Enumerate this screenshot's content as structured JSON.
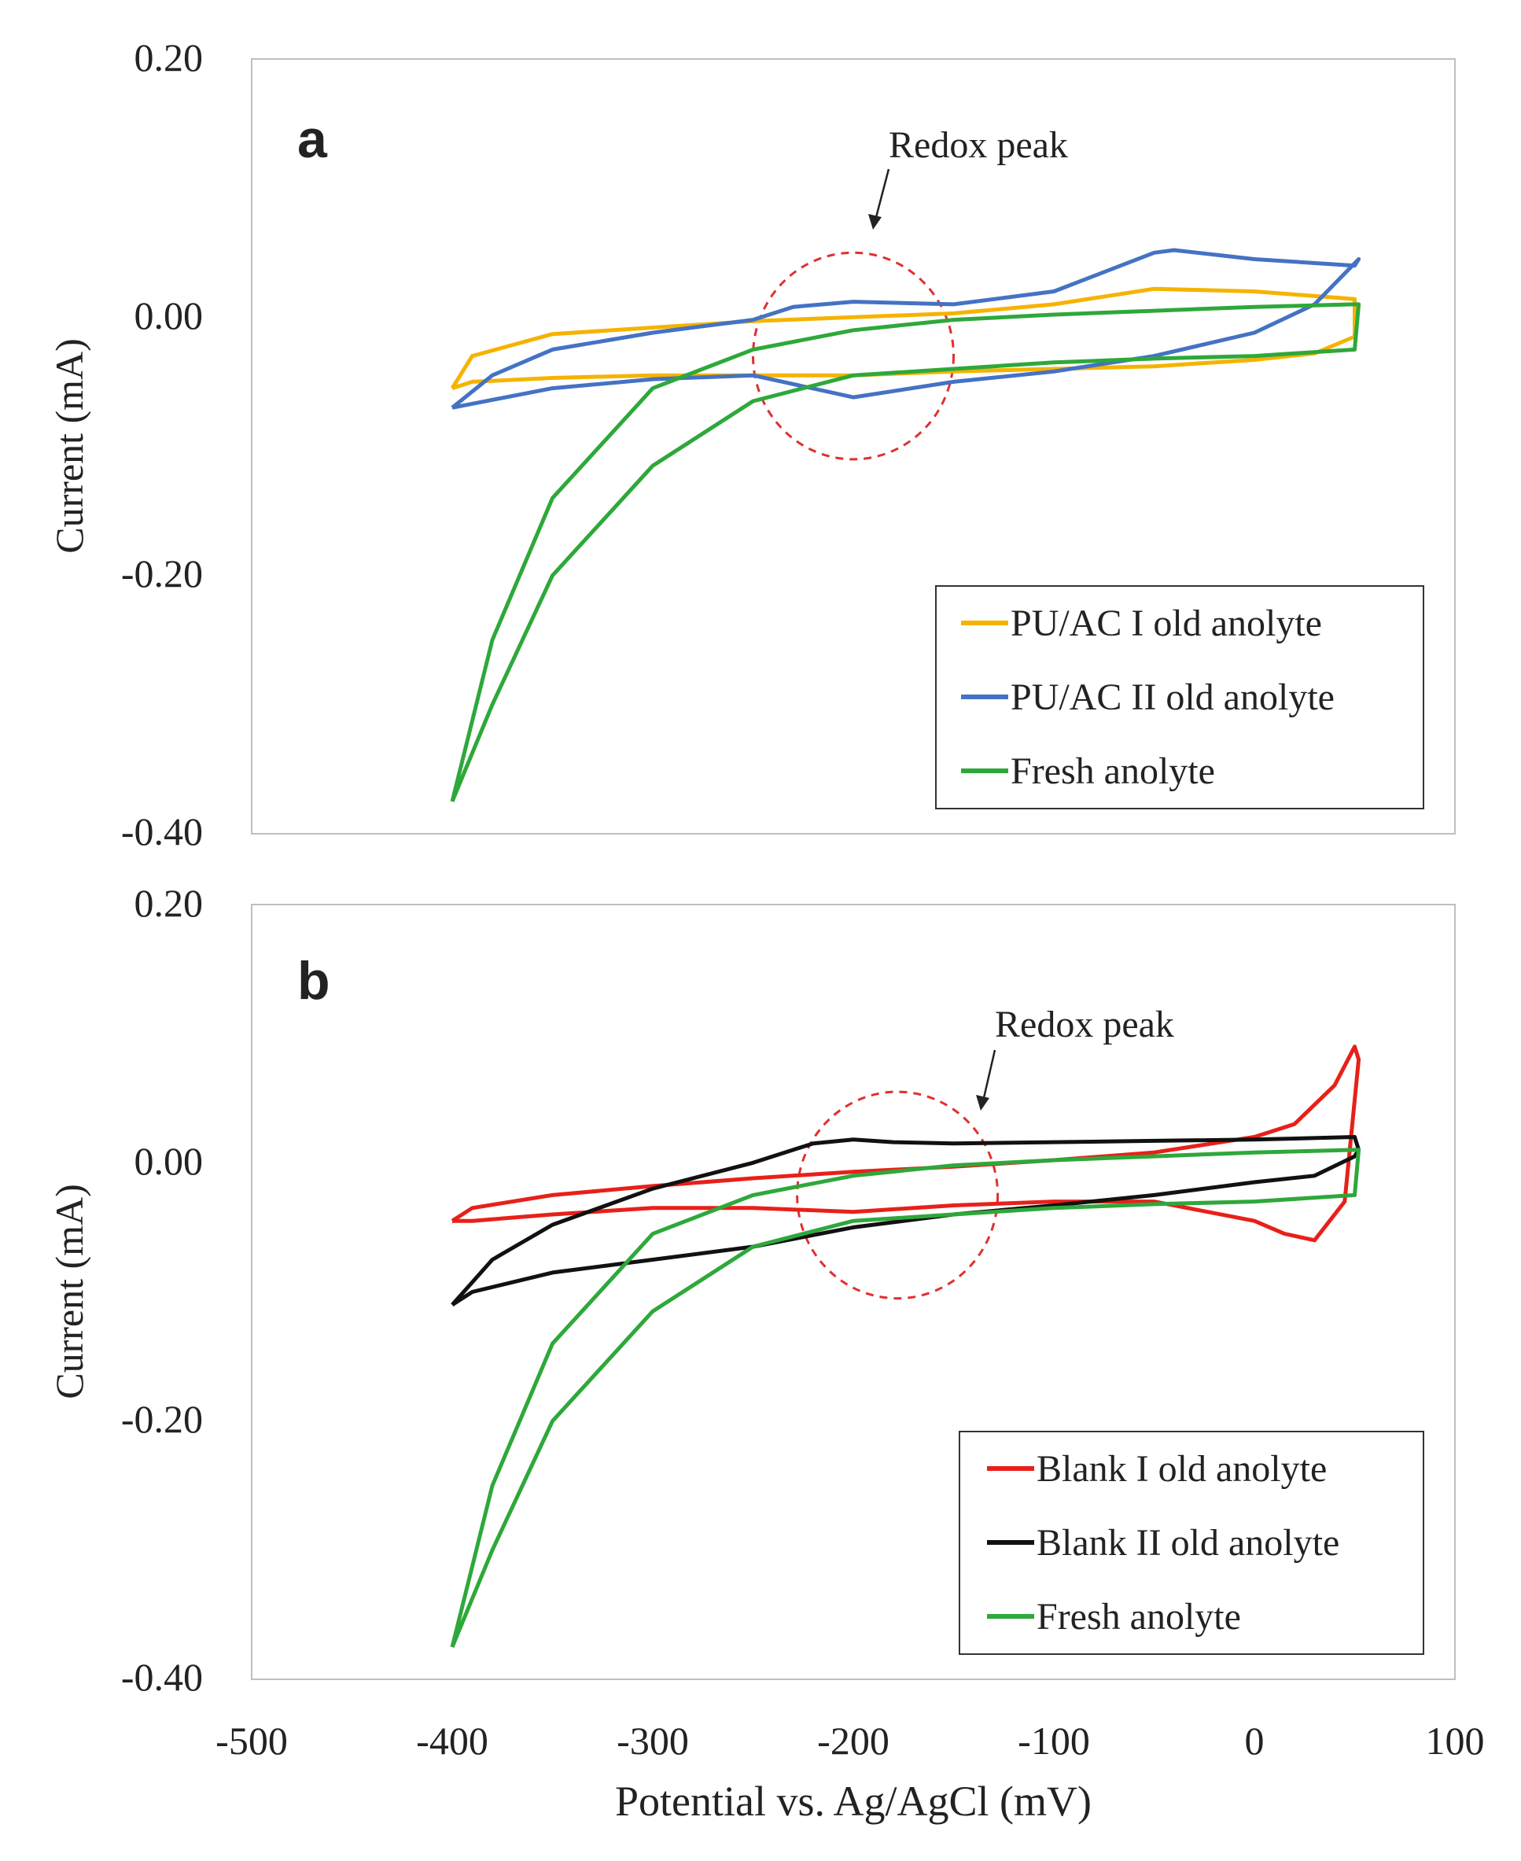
{
  "figure": {
    "xlabel": "Potential vs. Ag/AgCl (mV)",
    "x_ticks": [
      "-500",
      "-400",
      "-300",
      "-200",
      "-100",
      "0",
      "100"
    ]
  },
  "chart_data": [
    {
      "type": "line",
      "panel": "a",
      "xlabel": "Potential vs. Ag/AgCl (mV)",
      "ylabel": "Current (mA)",
      "xlim": [
        -500,
        100
      ],
      "ylim": [
        -0.4,
        0.2
      ],
      "y_ticks": [
        "0.20",
        "0.00",
        "-0.20",
        "-0.40"
      ],
      "annotation": "Redox peak",
      "highlight_circle": {
        "center_x": -200,
        "center_y": -0.03,
        "rx": 50,
        "ry": 0.08
      },
      "legend_position": "bottom-right",
      "series": [
        {
          "name": "PU/AC I old anolyte",
          "color": "#F5B300",
          "x": [
            -400,
            -390,
            -350,
            -300,
            -250,
            -200,
            -150,
            -100,
            -50,
            0,
            50,
            50,
            30,
            0,
            -50,
            -100,
            -150,
            -200,
            -250,
            -300,
            -350,
            -390,
            -400
          ],
          "y": [
            -0.055,
            -0.03,
            -0.013,
            -0.008,
            -0.003,
            0.0,
            0.003,
            0.01,
            0.022,
            0.02,
            0.014,
            -0.015,
            -0.028,
            -0.033,
            -0.038,
            -0.04,
            -0.042,
            -0.045,
            -0.045,
            -0.045,
            -0.047,
            -0.05,
            -0.055
          ]
        },
        {
          "name": "PU/AC II old anolyte",
          "color": "#4472C4",
          "x": [
            -400,
            -380,
            -350,
            -300,
            -250,
            -230,
            -200,
            -150,
            -100,
            -50,
            -40,
            0,
            50,
            52,
            30,
            0,
            -50,
            -100,
            -150,
            -200,
            -250,
            -300,
            -350,
            -400
          ],
          "y": [
            -0.07,
            -0.045,
            -0.025,
            -0.012,
            -0.002,
            0.008,
            0.012,
            0.01,
            0.02,
            0.05,
            0.052,
            0.045,
            0.04,
            0.045,
            0.01,
            -0.012,
            -0.03,
            -0.042,
            -0.05,
            -0.062,
            -0.045,
            -0.048,
            -0.055,
            -0.07
          ]
        },
        {
          "name": "Fresh anolyte",
          "color": "#2EA83A",
          "x": [
            -400,
            -380,
            -350,
            -300,
            -250,
            -200,
            -150,
            -100,
            -50,
            0,
            50,
            52,
            50,
            0,
            -50,
            -100,
            -150,
            -200,
            -250,
            -300,
            -350,
            -380,
            -400
          ],
          "y": [
            -0.375,
            -0.3,
            -0.2,
            -0.115,
            -0.065,
            -0.045,
            -0.04,
            -0.035,
            -0.032,
            -0.03,
            -0.025,
            0.01,
            0.01,
            0.008,
            0.005,
            0.002,
            -0.002,
            -0.01,
            -0.025,
            -0.055,
            -0.14,
            -0.25,
            -0.375
          ]
        }
      ]
    },
    {
      "type": "line",
      "panel": "b",
      "xlabel": "Potential vs. Ag/AgCl (mV)",
      "ylabel": "Current (mA)",
      "xlim": [
        -500,
        100
      ],
      "ylim": [
        -0.4,
        0.2
      ],
      "y_ticks": [
        "0.20",
        "0.00",
        "-0.20",
        "-0.40"
      ],
      "annotation": "Redox peak",
      "highlight_circle": {
        "center_x": -178,
        "center_y": -0.025,
        "rx": 50,
        "ry": 0.08
      },
      "legend_position": "bottom-right",
      "series": [
        {
          "name": "Blank I old anolyte",
          "color": "#E8201A",
          "x": [
            -400,
            -390,
            -350,
            -300,
            -250,
            -200,
            -150,
            -100,
            -50,
            0,
            20,
            40,
            50,
            52,
            45,
            30,
            15,
            0,
            -50,
            -100,
            -150,
            -200,
            -250,
            -300,
            -350,
            -390,
            -400
          ],
          "y": [
            -0.045,
            -0.035,
            -0.025,
            -0.018,
            -0.012,
            -0.007,
            -0.003,
            0.002,
            0.008,
            0.02,
            0.03,
            0.06,
            0.09,
            0.08,
            -0.03,
            -0.06,
            -0.055,
            -0.045,
            -0.03,
            -0.03,
            -0.033,
            -0.038,
            -0.035,
            -0.035,
            -0.04,
            -0.045,
            -0.045
          ]
        },
        {
          "name": "Blank II old anolyte",
          "color": "#111111",
          "x": [
            -400,
            -380,
            -350,
            -300,
            -250,
            -220,
            -200,
            -180,
            -150,
            -100,
            -50,
            0,
            50,
            52,
            50,
            30,
            0,
            -50,
            -100,
            -150,
            -200,
            -250,
            -300,
            -350,
            -390,
            -400
          ],
          "y": [
            -0.11,
            -0.075,
            -0.048,
            -0.02,
            0.0,
            0.015,
            0.018,
            0.016,
            0.015,
            0.016,
            0.017,
            0.018,
            0.02,
            0.01,
            0.005,
            -0.01,
            -0.015,
            -0.025,
            -0.033,
            -0.04,
            -0.05,
            -0.065,
            -0.075,
            -0.085,
            -0.1,
            -0.11
          ]
        },
        {
          "name": "Fresh anolyte",
          "color": "#2EA83A",
          "x": [
            -400,
            -380,
            -350,
            -300,
            -250,
            -200,
            -150,
            -100,
            -50,
            0,
            50,
            52,
            50,
            0,
            -50,
            -100,
            -150,
            -200,
            -250,
            -300,
            -350,
            -380,
            -400
          ],
          "y": [
            -0.375,
            -0.3,
            -0.2,
            -0.115,
            -0.065,
            -0.045,
            -0.04,
            -0.035,
            -0.032,
            -0.03,
            -0.025,
            0.01,
            0.01,
            0.008,
            0.005,
            0.002,
            -0.002,
            -0.01,
            -0.025,
            -0.055,
            -0.14,
            -0.25,
            -0.375
          ]
        }
      ]
    }
  ]
}
